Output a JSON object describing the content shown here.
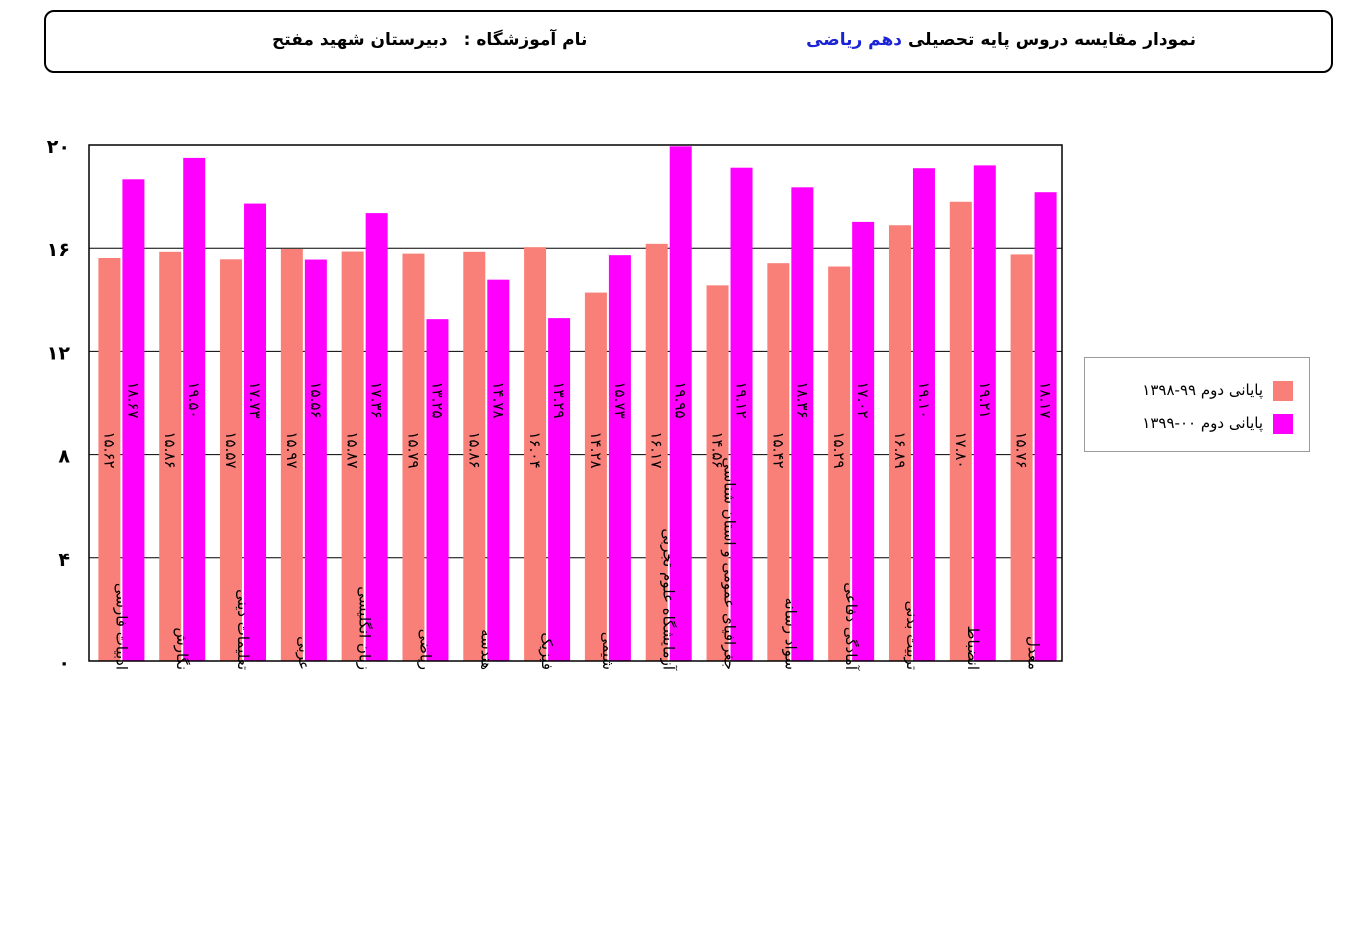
{
  "header": {
    "title_prefix": "نمودار مقایسه دروس پایه تحصیلی",
    "title_highlight": "دهم ریاضی",
    "school_label": "نام آموزشگاه :",
    "school_name": "دبیرستان شهید مفتح"
  },
  "colors": {
    "series1": "#f98078",
    "series2": "#ff00ff",
    "title_highlight": "#1a24d6",
    "grid": "#000000"
  },
  "chart_data": {
    "type": "bar",
    "ylim": [
      0,
      20
    ],
    "yticks": [
      "۰",
      "۴",
      "۸",
      "۱۲",
      "۱۶",
      "۲۰"
    ],
    "ytick_values": [
      0,
      4,
      8,
      12,
      16,
      20
    ],
    "grid": true,
    "legend_position": "right",
    "categories": [
      "ادبیات فارسی",
      "نگارش",
      "تعلیمات دینی",
      "عربی",
      "زبان انگلیسی",
      "ریاضی",
      "هندسه",
      "فیزیک",
      "شیمی",
      "آزمایشگاه علوم تجربی",
      "جغرافیای عمومی و استان شناسی",
      "سواد رسانه",
      "آمادگی دفاعی",
      "تربیت بدنی",
      "انضباط",
      "معدل"
    ],
    "series": [
      {
        "name": "پایانی دوم ۹۹-۱۳۹۸",
        "values": [
          15.62,
          15.86,
          15.57,
          15.97,
          15.87,
          15.79,
          15.86,
          16.04,
          14.28,
          16.17,
          14.56,
          15.42,
          15.29,
          16.89,
          17.8,
          15.76
        ],
        "labels": [
          "۱۵.۶۲",
          "۱۵.۸۶",
          "۱۵.۵۷",
          "۱۵.۹۷",
          "۱۵.۸۷",
          "۱۵.۷۹",
          "۱۵.۸۶",
          "۱۶.۰۴",
          "۱۴.۲۸",
          "۱۶.۱۷",
          "۱۴.۵۶",
          "۱۵.۴۲",
          "۱۵.۲۹",
          "۱۶.۸۹",
          "۱۷.۸۰",
          "۱۵.۷۶"
        ]
      },
      {
        "name": "پایانی دوم ۰۰-۱۳۹۹",
        "values": [
          18.67,
          19.5,
          17.73,
          15.56,
          17.36,
          13.25,
          14.78,
          13.29,
          15.73,
          19.95,
          19.12,
          18.36,
          17.02,
          19.1,
          19.21,
          18.17
        ],
        "labels": [
          "۱۸.۶۷",
          "۱۹.۵۰",
          "۱۷.۷۳",
          "۱۵.۵۶",
          "۱۷.۳۶",
          "۱۳.۲۵",
          "۱۴.۷۸",
          "۱۳.۲۹",
          "۱۵.۷۳",
          "۱۹.۹۵",
          "۱۹.۱۲",
          "۱۸.۳۶",
          "۱۷.۰۲",
          "۱۹.۱۰",
          "۱۹.۲۱",
          "۱۸.۱۷"
        ]
      }
    ]
  }
}
